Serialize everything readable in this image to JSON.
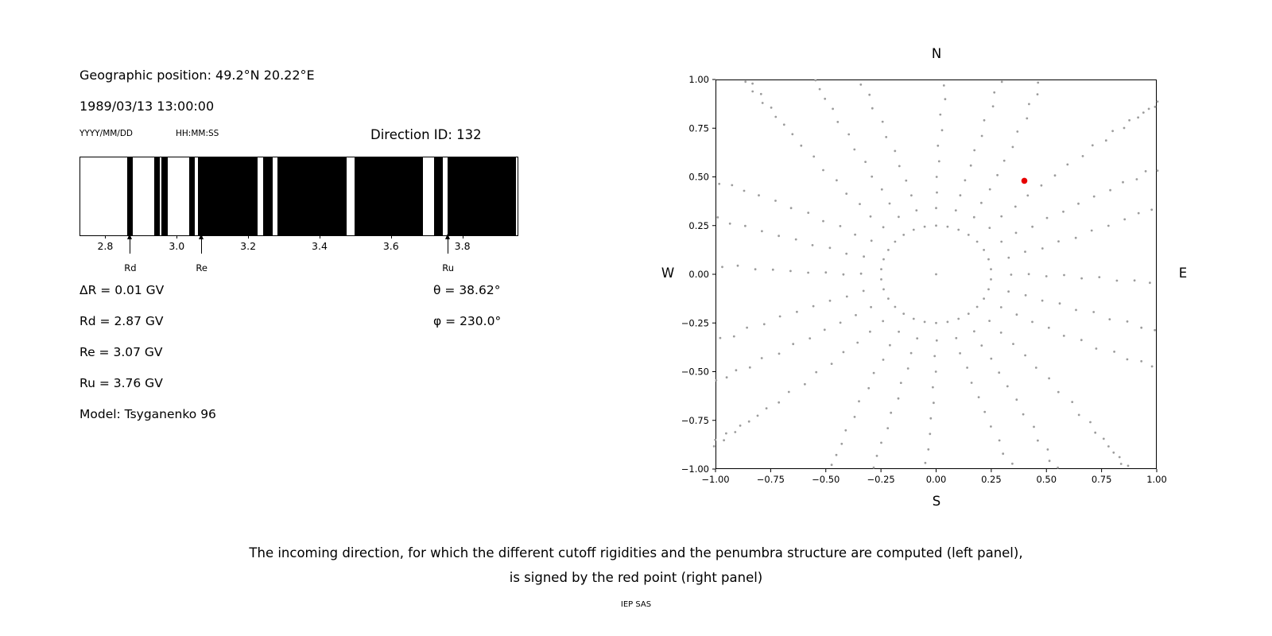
{
  "left_panel": {
    "geo_position": "Geographic position: 49.2°N 20.22°E",
    "datetime": "1989/03/13 13:00:00",
    "date_format_label": "YYYY/MM/DD",
    "time_format_label": "HH:MM:SS",
    "direction_id": "Direction ID: 132",
    "values": [
      "ΔR = 0.01 GV",
      "Rd = 2.87 GV",
      "Re = 3.07 GV",
      "Ru = 3.76 GV",
      "Model: Tsyganenko 96"
    ],
    "angles": [
      "θ = 38.62°",
      "φ = 230.0°"
    ]
  },
  "caption": {
    "line1": "The incoming direction, for which the different cutoff rigidities and the penumbra structure are computed (left panel),",
    "line2": "is signed by the red point (right panel)"
  },
  "credit": "IEP SAS",
  "chart_data": [
    {
      "type": "bar",
      "subtype": "penumbra-barcode",
      "description": "Penumbra structure of cutoff rigidity: black/white bands over rigidity (GV) between lower cutoff Rd and upper cutoff Ru",
      "x_range": [
        2.73,
        3.95
      ],
      "x_tick_values": [
        2.8,
        3.0,
        3.2,
        3.4,
        3.6,
        3.8
      ],
      "x_tick_labels": [
        "2.8",
        "3.0",
        "3.2",
        "3.4",
        "3.6",
        "3.8"
      ],
      "black_bands": [
        [
          2.862,
          2.878
        ],
        [
          2.936,
          2.952
        ],
        [
          2.958,
          2.974
        ],
        [
          3.034,
          3.05
        ],
        [
          3.06,
          3.226
        ],
        [
          3.242,
          3.269
        ],
        [
          3.283,
          3.477
        ],
        [
          3.499,
          3.689
        ],
        [
          3.72,
          3.746
        ],
        [
          3.758,
          3.95
        ]
      ],
      "markers": [
        {
          "label": "Rd",
          "value": 2.87
        },
        {
          "label": "Re",
          "value": 3.07
        },
        {
          "label": "Ru",
          "value": 3.76
        }
      ]
    },
    {
      "type": "scatter",
      "description": "Grid of computed incoming directions (gray dots, radial spokes every 15° plus inner ring); red point marks direction ID 132 with θ = 38.62°, φ = 230.0°",
      "x_range": [
        -1,
        1
      ],
      "y_range": [
        -1,
        1
      ],
      "tick_values": [
        -1.0,
        -0.75,
        -0.5,
        -0.25,
        0.0,
        0.25,
        0.5,
        0.75,
        1.0
      ],
      "tick_labels": [
        "−1.00",
        "−0.75",
        "−0.50",
        "−0.25",
        "0.00",
        "0.25",
        "0.50",
        "0.75",
        "1.00"
      ],
      "compass": {
        "top": "N",
        "bottom": "S",
        "left": "W",
        "right": "E"
      },
      "dot_color": "#9c9c9c",
      "grid": {
        "azimuth_count": 24,
        "center_point": true,
        "ring_radius": 0.25,
        "ring_point_count": 30,
        "spoke_radii": [
          0.34,
          0.42,
          0.5,
          0.58,
          0.66,
          0.74,
          0.82,
          0.9,
          0.97,
          1.032,
          1.087,
          1.136,
          1.18,
          1.219,
          1.254,
          1.285,
          1.313,
          1.339,
          1.363
        ],
        "twist_deg": 6,
        "jitter": 0.008
      },
      "highlight_point": {
        "x": 0.4,
        "y": 0.48,
        "color": "#e60000"
      }
    }
  ]
}
